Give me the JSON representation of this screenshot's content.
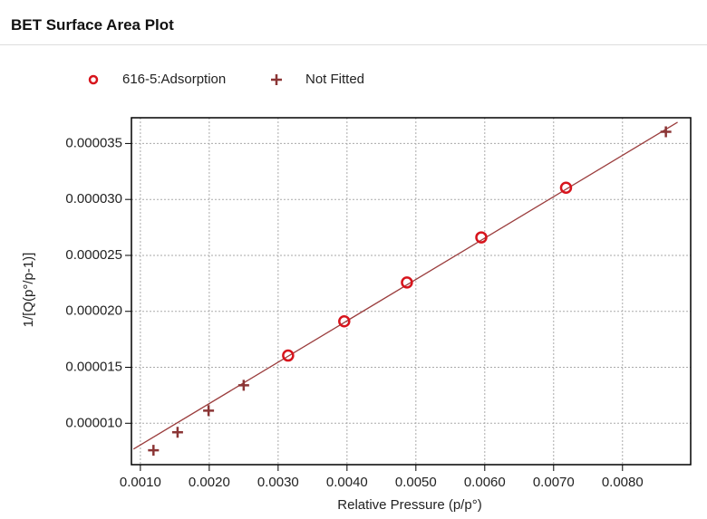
{
  "header": {
    "title": "BET Surface Area Plot"
  },
  "chart_data": {
    "type": "scatter",
    "x_label": "Relative Pressure (p/p°)",
    "y_label": "1/[Q(p°/p-1)]",
    "xlim": [
      0.00087,
      0.00899
    ],
    "ylim": [
      6.3e-06,
      3.73e-05
    ],
    "xticks": [
      {
        "value": 0.001,
        "label": "0.0010"
      },
      {
        "value": 0.002,
        "label": "0.0020"
      },
      {
        "value": 0.003,
        "label": "0.0030"
      },
      {
        "value": 0.004,
        "label": "0.0040"
      },
      {
        "value": 0.005,
        "label": "0.0050"
      },
      {
        "value": 0.006,
        "label": "0.0060"
      },
      {
        "value": 0.007,
        "label": "0.0070"
      },
      {
        "value": 0.008,
        "label": "0.0080"
      }
    ],
    "yticks": [
      {
        "value": 1e-05,
        "label": "0.000010"
      },
      1.5e-05,
      {
        "value": 2e-05,
        "label": "0.000020"
      },
      2.5e-05,
      {
        "value": 3e-05,
        "label": "0.000030"
      },
      3.5e-05
    ],
    "grid": true,
    "series": [
      {
        "name": "616-5:Adsorption",
        "marker": "circle",
        "color": "#d7141c",
        "x": [
          0.003145,
          0.00396,
          0.00487,
          0.00595,
          0.00718
        ],
        "values": [
          1.605e-05,
          1.911e-05,
          2.258e-05,
          2.661e-05,
          3.105e-05
        ]
      },
      {
        "name": "Not Fitted",
        "marker": "plus",
        "color": "#8b3535",
        "x": [
          0.00119,
          0.00154,
          0.00199,
          0.0025,
          0.00863
        ],
        "values": [
          7.58e-06,
          9.19e-06,
          1.113e-05,
          1.339e-05,
          3.605e-05
        ]
      },
      {
        "marker": "line",
        "color": "#9b3d3d",
        "x": [
          0.0009,
          0.0088
        ],
        "values": [
          7.69e-06,
          3.69e-05
        ]
      }
    ]
  }
}
